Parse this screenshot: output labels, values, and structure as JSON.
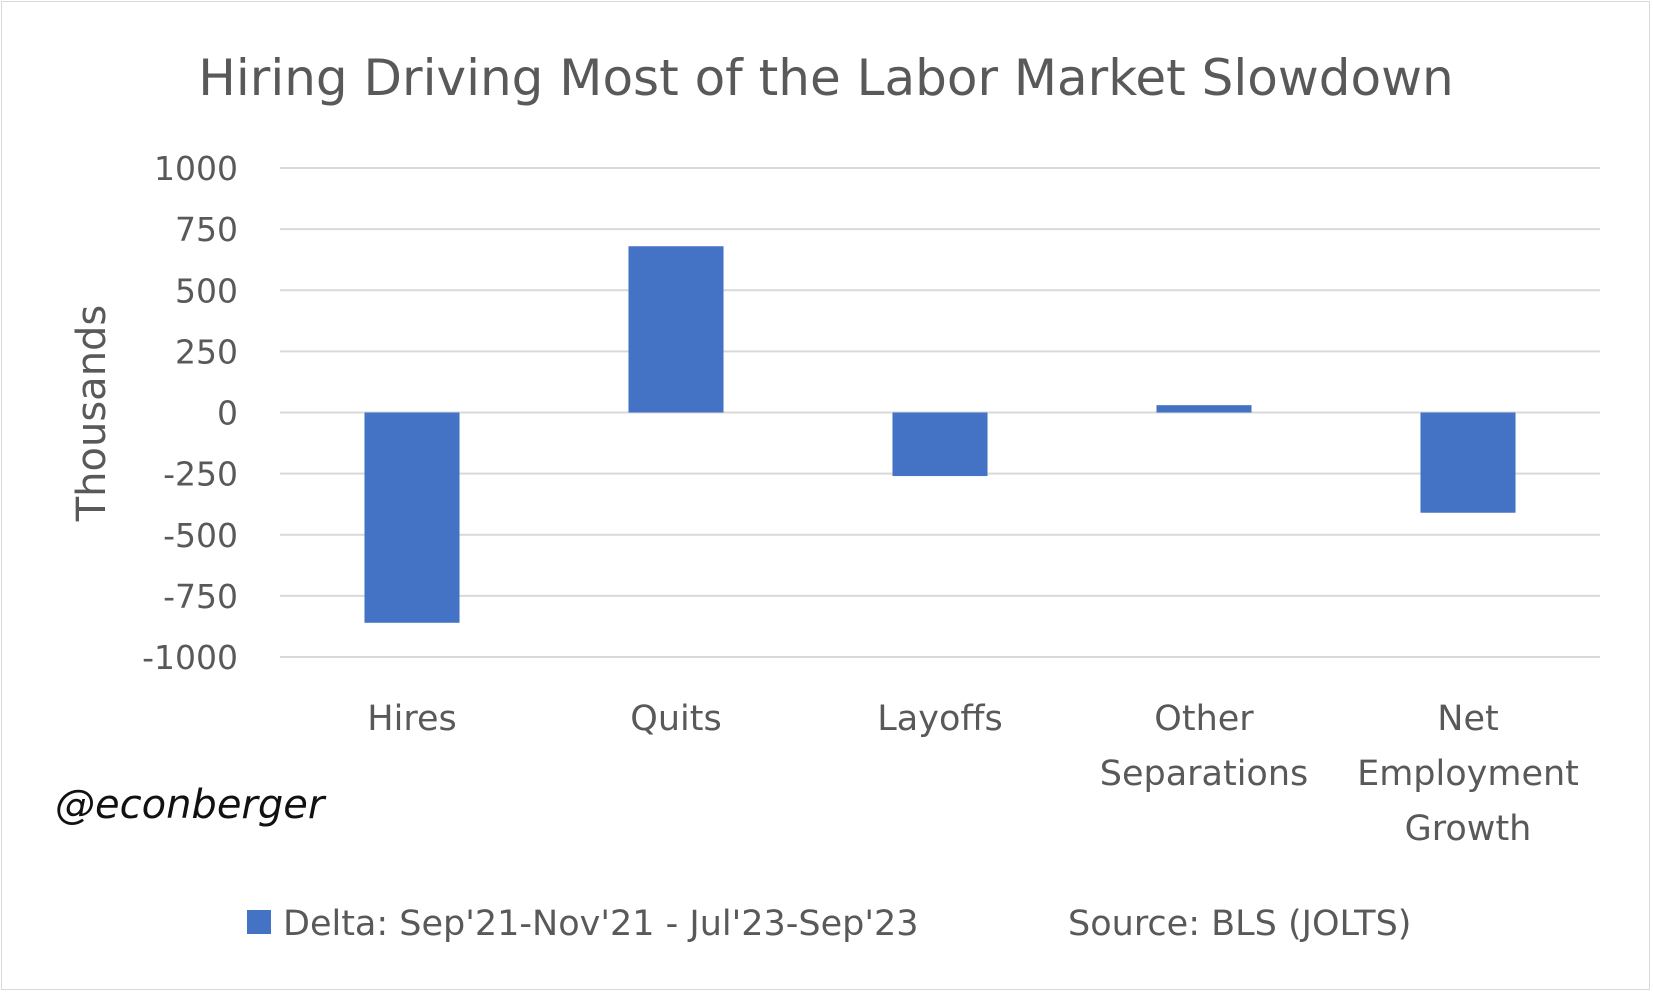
{
  "chart_data": {
    "type": "bar",
    "title": "Hiring Driving Most of the Labor Market Slowdown",
    "ylabel": "Thousands",
    "xlabel": "",
    "ylim": [
      -1000,
      1000
    ],
    "yticks": [
      1000,
      750,
      500,
      250,
      0,
      -250,
      -500,
      -750,
      -1000
    ],
    "categories": [
      [
        "Hires"
      ],
      [
        "Quits"
      ],
      [
        "Layoffs"
      ],
      [
        "Other",
        "Separations"
      ],
      [
        "Net",
        "Employment",
        "Growth"
      ]
    ],
    "series": [
      {
        "name": "Delta: Sep'21-Nov'21 - Jul'23-Sep'23",
        "color": "#4472c4",
        "values": [
          -860,
          680,
          -260,
          30,
          -410
        ]
      }
    ],
    "legend_position": "bottom",
    "grid": true
  },
  "source_note": "Source: BLS (JOLTS)",
  "watermark": "@econberger"
}
